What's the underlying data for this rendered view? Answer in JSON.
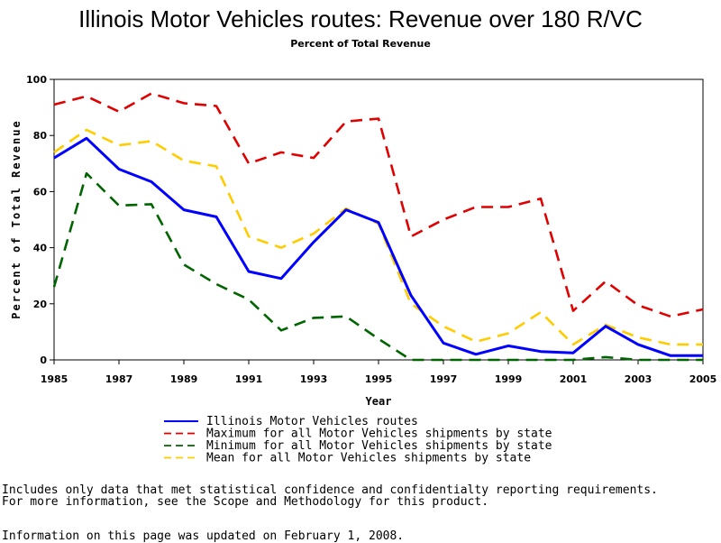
{
  "chart_data": {
    "type": "line",
    "title": "Illinois Motor Vehicles routes: Revenue over 180 R/VC",
    "subtitle": "Percent of Total Revenue",
    "xlabel": "Year",
    "ylabel": "Percent of Total Revenue",
    "xlim": [
      1985,
      2005
    ],
    "ylim": [
      0,
      100
    ],
    "x_ticks": [
      1985,
      1987,
      1989,
      1991,
      1993,
      1995,
      1997,
      1999,
      2001,
      2003,
      2005
    ],
    "y_ticks": [
      0,
      20,
      40,
      60,
      80,
      100
    ],
    "grid": false,
    "legend_position": "bottom",
    "x": [
      1985,
      1986,
      1987,
      1988,
      1989,
      1990,
      1991,
      1992,
      1993,
      1994,
      1995,
      1996,
      1997,
      1998,
      1999,
      2000,
      2001,
      2002,
      2003,
      2004,
      2005
    ],
    "series": [
      {
        "name": "Illinois Motor Vehicles routes",
        "color": "#0000ff",
        "style": "solid",
        "values": [
          72,
          79,
          68,
          63.5,
          53.5,
          51,
          31.5,
          29,
          42,
          53.5,
          49,
          23,
          6,
          2,
          5,
          3,
          2.5,
          12,
          5.5,
          1.5,
          1.5
        ]
      },
      {
        "name": "Maximum for all Motor Vehicles shipments by state",
        "color": "#e00000",
        "style": "dashed",
        "values": [
          91,
          94,
          88.5,
          95,
          91.5,
          90.5,
          70,
          74,
          72,
          85,
          86,
          44,
          50,
          54.5,
          54.5,
          57.5,
          17.5,
          28,
          19.5,
          15.5,
          18
        ]
      },
      {
        "name": "Minimum for all Motor Vehicles shipments by state",
        "color": "#006400",
        "style": "dashed",
        "values": [
          26,
          66.5,
          55,
          55.5,
          34,
          27,
          21.5,
          10.5,
          15,
          15.5,
          7.5,
          0,
          0,
          0,
          0,
          0,
          0,
          1,
          0,
          0,
          0
        ]
      },
      {
        "name": "Mean for all Motor Vehicles shipments by state",
        "color": "#ffcc00",
        "style": "dashed",
        "values": [
          74,
          82,
          76.5,
          78,
          71,
          69,
          44,
          40,
          45,
          54,
          48.5,
          20,
          12,
          6.5,
          9.5,
          17,
          5.5,
          12.5,
          8,
          5.5,
          5.5
        ]
      }
    ]
  },
  "footnotes": {
    "line1": "Includes only data that met statistical confidence and confidentialty reporting requirements.",
    "line2": "For more information, see the Scope and Methodology for this product.",
    "line3": "Information on this page was updated on February 1, 2008."
  }
}
